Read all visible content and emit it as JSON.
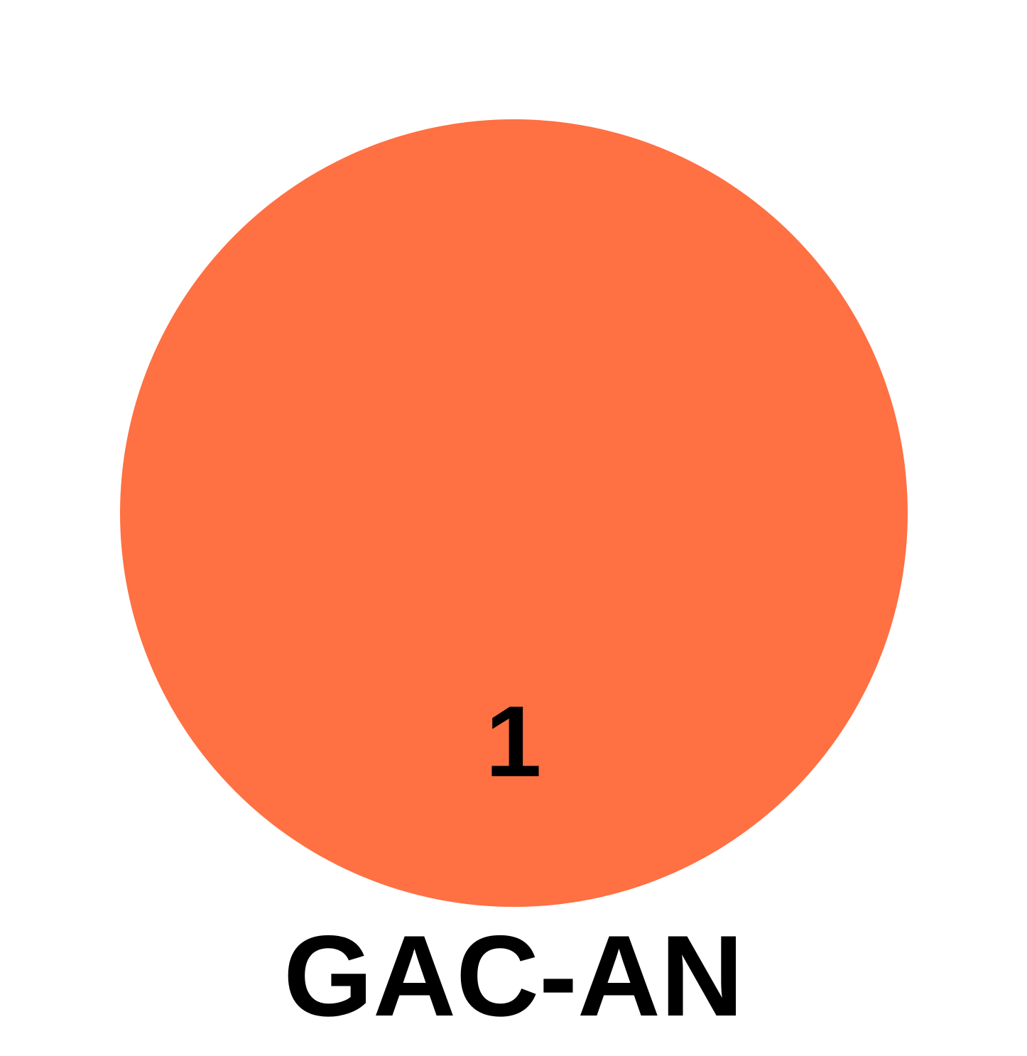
{
  "diagram": {
    "set": {
      "label": "GAC-AN",
      "count": "1",
      "fill_color": "#FF7043"
    }
  }
}
